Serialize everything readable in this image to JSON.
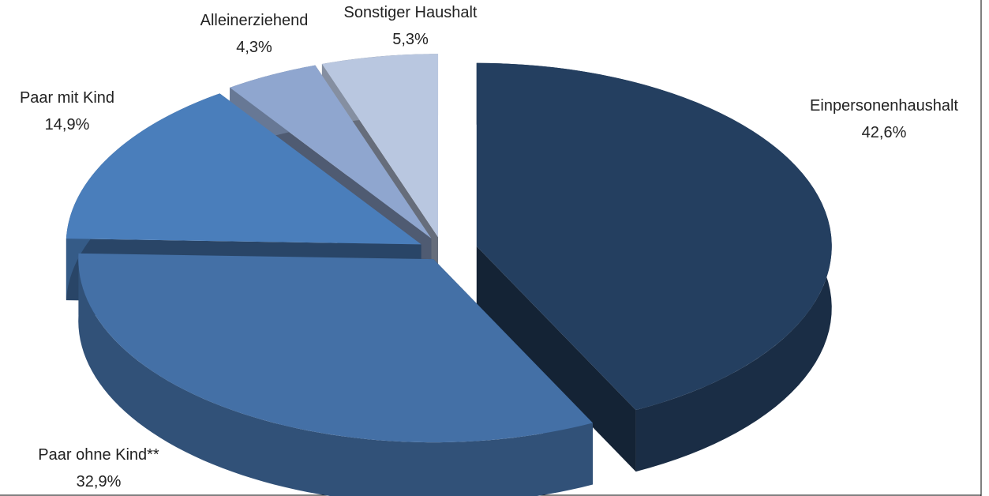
{
  "chart_data": {
    "type": "pie",
    "categories": [
      "Einpersonenhaushalt",
      "Paar ohne Kind**",
      "Paar mit Kind",
      "Alleinerziehend",
      "Sonstiger Haushalt"
    ],
    "values": [
      42.6,
      32.9,
      14.9,
      4.3,
      5.3
    ],
    "value_labels": [
      "42,6%",
      "32,9%",
      "14,9%",
      "4,3%",
      "5,3%"
    ],
    "colors": [
      "#243f60",
      "#4470a6",
      "#4a7ebb",
      "#8fa6cf",
      "#b9c7e0"
    ]
  }
}
